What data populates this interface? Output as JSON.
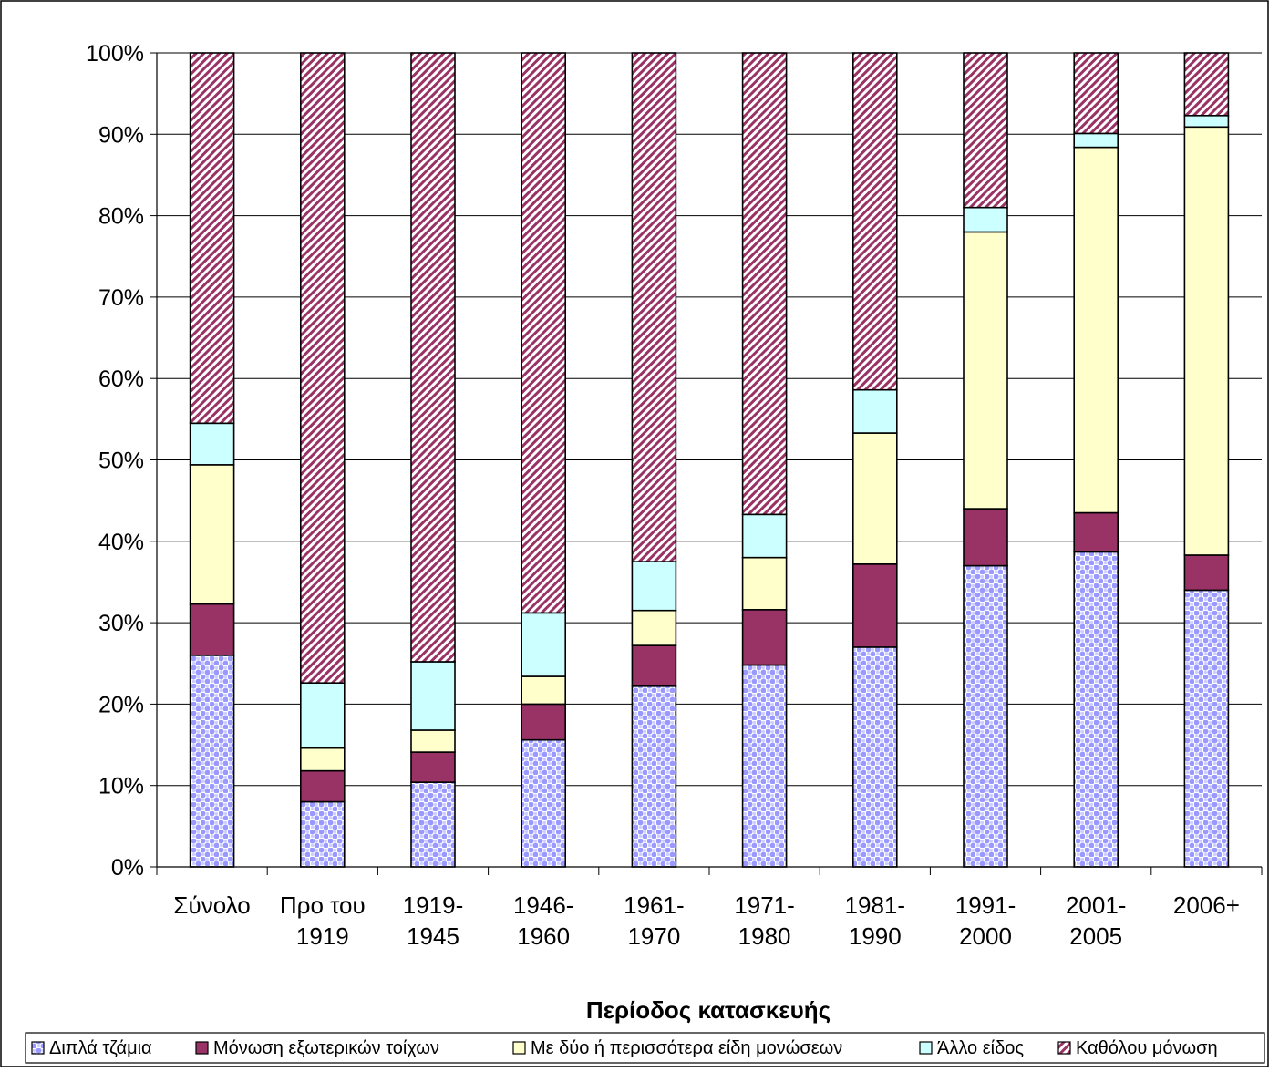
{
  "chart_data": {
    "type": "bar",
    "stacked": true,
    "percent_stacked": true,
    "title": "",
    "xlabel": "Περίοδος κατασκευής",
    "ylabel": "",
    "ylim": [
      0,
      100
    ],
    "yticks": [
      "0%",
      "10%",
      "20%",
      "30%",
      "40%",
      "50%",
      "60%",
      "70%",
      "80%",
      "90%",
      "100%"
    ],
    "grid": true,
    "legend_position": "bottom",
    "categories": [
      [
        "Σύνολο"
      ],
      [
        "Προ του",
        "1919"
      ],
      [
        "1919-",
        "1945"
      ],
      [
        "1946-",
        "1960"
      ],
      [
        "1961-",
        "1970"
      ],
      [
        "1971-",
        "1980"
      ],
      [
        "1981-",
        "1990"
      ],
      [
        "1991-",
        "2000"
      ],
      [
        "2001-",
        "2005"
      ],
      [
        "2006+"
      ]
    ],
    "series": [
      {
        "name": "Διπλά τζάμια",
        "color": "#9999FF",
        "pattern": "dots",
        "values": [
          26.0,
          8.0,
          10.4,
          15.6,
          22.2,
          24.8,
          27.0,
          37.0,
          38.7,
          34.0
        ]
      },
      {
        "name": "Μόνωση εξωτερικών τοίχων",
        "color": "#993366",
        "pattern": "solid",
        "values": [
          6.3,
          3.8,
          3.7,
          4.4,
          5.0,
          6.8,
          10.2,
          7.0,
          4.8,
          4.3
        ]
      },
      {
        "name": "Με δύο ή περισσότερα είδη μονώσεων",
        "color": "#FFFFCC",
        "pattern": "solid",
        "values": [
          17.1,
          2.8,
          2.7,
          3.4,
          4.3,
          6.4,
          16.1,
          34.0,
          44.9,
          52.6
        ]
      },
      {
        "name": "Άλλο είδος",
        "color": "#CCFFFF",
        "pattern": "solid",
        "values": [
          5.1,
          8.0,
          8.4,
          7.8,
          6.0,
          5.3,
          5.3,
          3.0,
          1.7,
          1.4
        ]
      },
      {
        "name": "Καθόλου μόνωση",
        "color": "#993366",
        "pattern": "diagonal",
        "values": [
          45.5,
          77.4,
          74.8,
          68.8,
          62.5,
          56.7,
          41.4,
          19.0,
          9.9,
          7.7
        ]
      }
    ]
  }
}
